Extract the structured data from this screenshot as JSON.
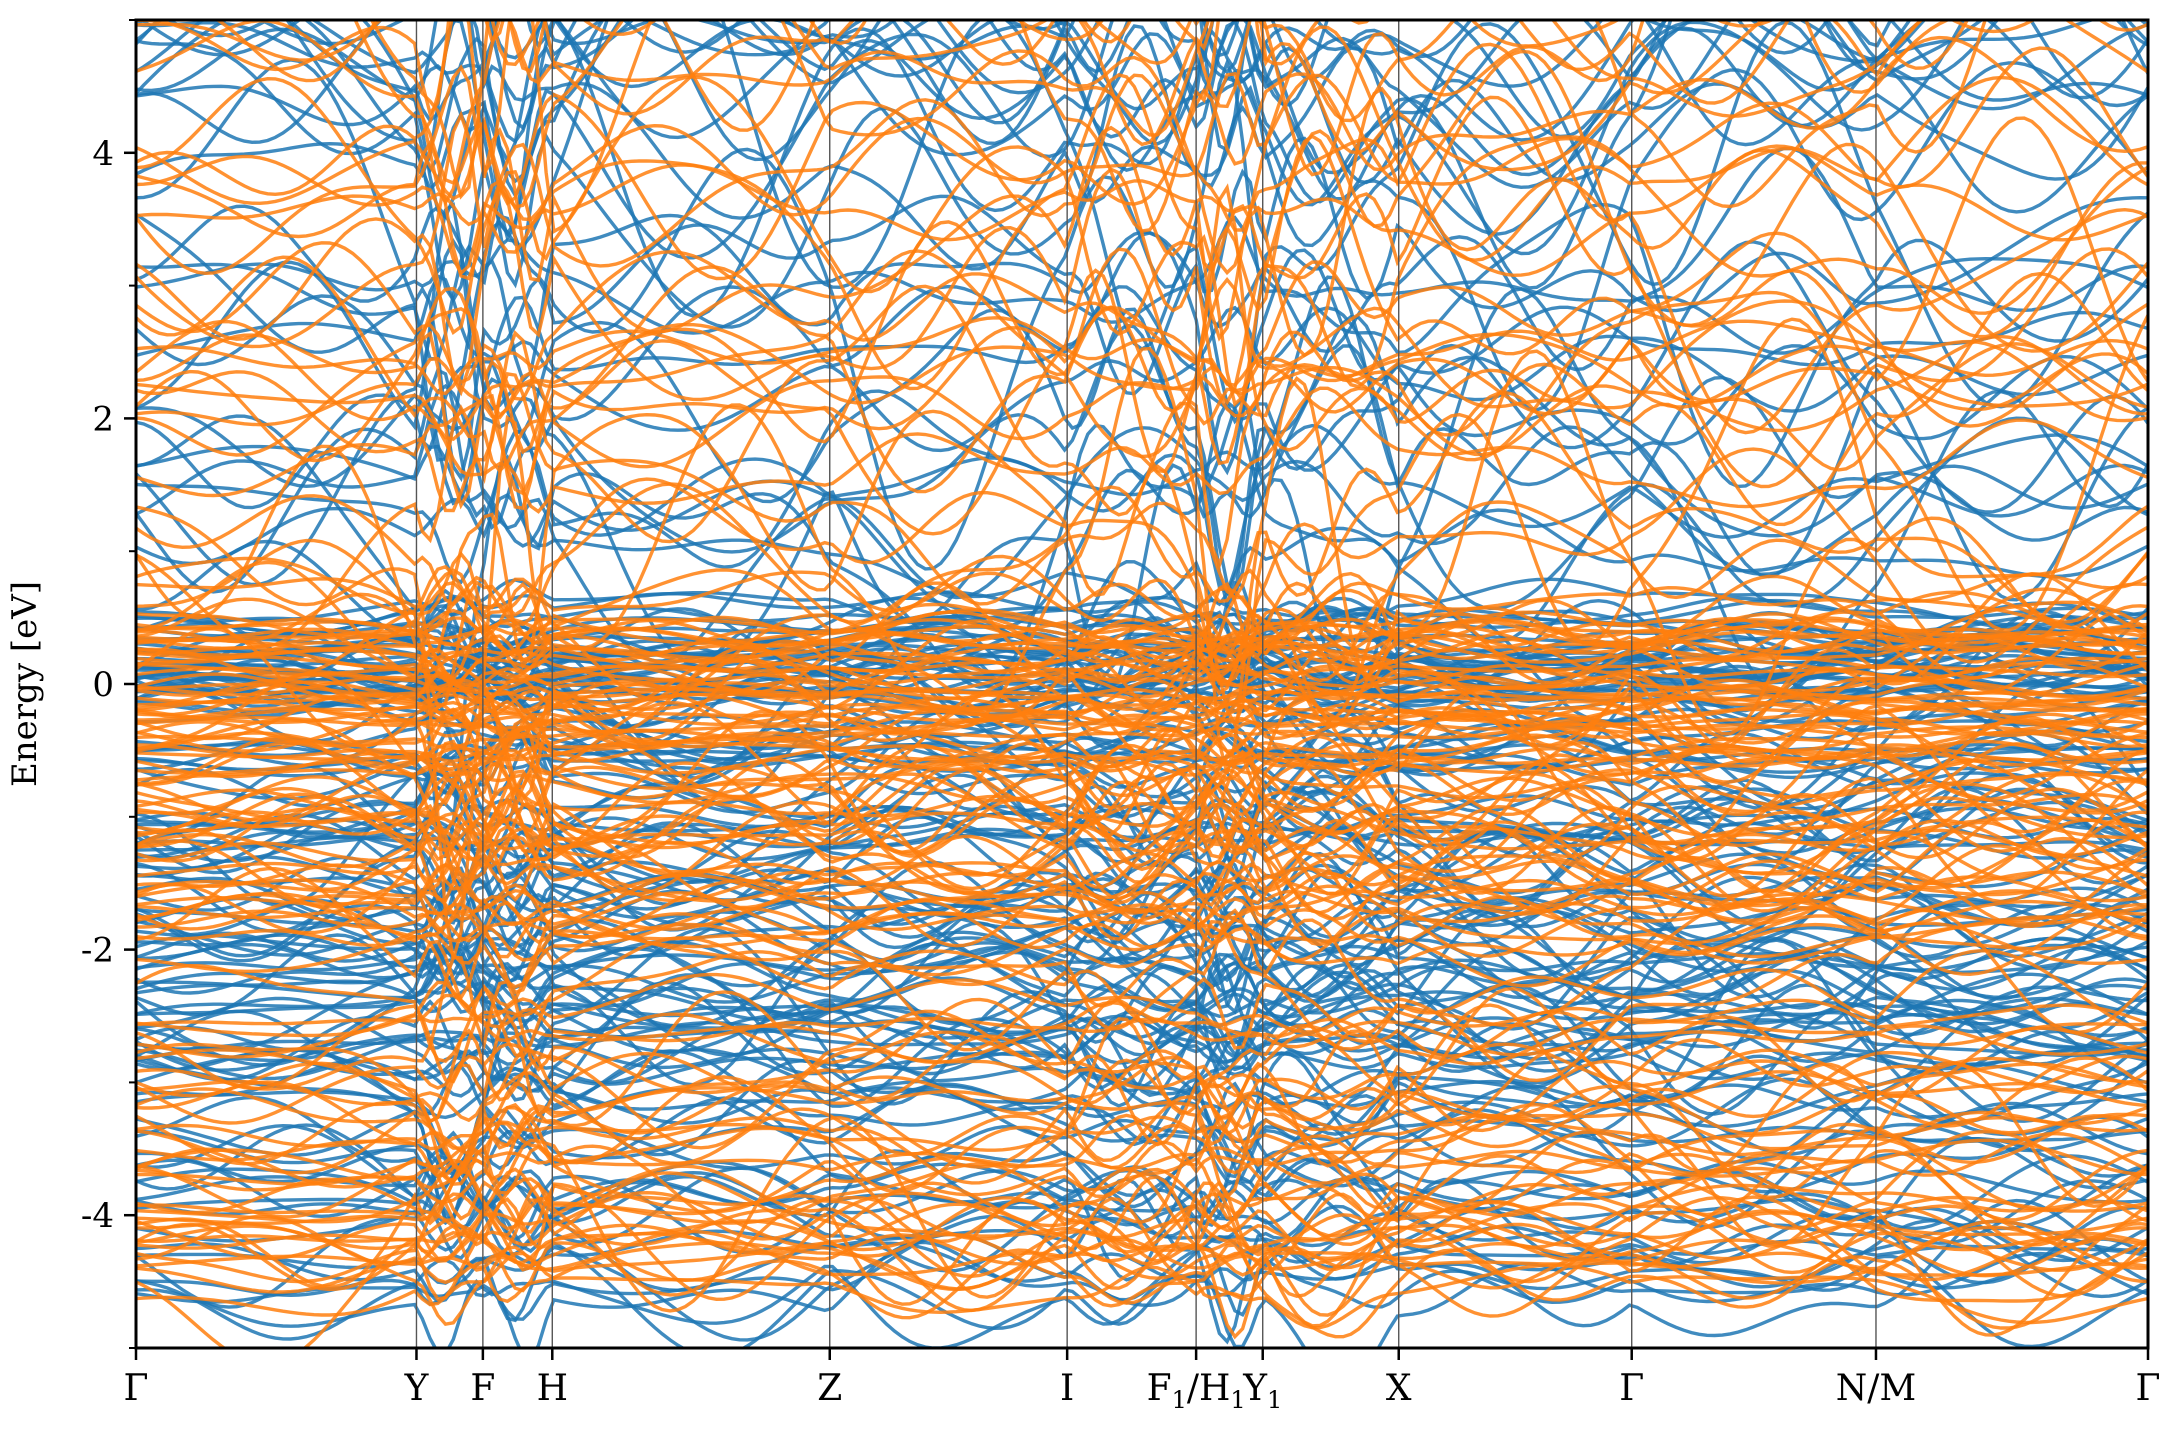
{
  "chart_data": {
    "type": "line",
    "title": "",
    "ylabel": "Energy [eV]",
    "xlabel": "",
    "ylim": [
      -5,
      5
    ],
    "xlim": [
      0,
      1
    ],
    "grid": false,
    "legend": "none",
    "yticks": [
      {
        "value": -4,
        "label": "-4"
      },
      {
        "value": -2,
        "label": "-2"
      },
      {
        "value": 0,
        "label": "0"
      },
      {
        "value": 2,
        "label": "2"
      },
      {
        "value": 4,
        "label": "4"
      }
    ],
    "yminor_ticks": [
      -5,
      -3,
      -1,
      1,
      3,
      5
    ],
    "high_symmetry_points": [
      {
        "label": "Γ",
        "sub": "",
        "k": 0.0
      },
      {
        "label": "Y",
        "sub": "",
        "k": 0.1394
      },
      {
        "label": "F",
        "sub": "",
        "k": 0.1724
      },
      {
        "label": "H",
        "sub": "",
        "k": 0.2069
      },
      {
        "label": "Z",
        "sub": "",
        "k": 0.3448
      },
      {
        "label": "I",
        "sub": "",
        "k": 0.4628
      },
      {
        "label": "F₁/H₁",
        "sub": "",
        "k": 0.5269,
        "display": [
          {
            "t": "F"
          },
          {
            "t": "1",
            "s": true
          },
          {
            "t": "/H"
          },
          {
            "t": "1",
            "s": true
          }
        ]
      },
      {
        "label": "Y₁",
        "sub": "",
        "k": 0.56,
        "display": [
          {
            "t": "Y"
          },
          {
            "t": "1",
            "s": true
          }
        ]
      },
      {
        "label": "X",
        "sub": "",
        "k": 0.6276
      },
      {
        "label": "Γ",
        "sub": "",
        "k": 0.7434
      },
      {
        "label": "N/M",
        "sub": "",
        "k": 0.8648
      },
      {
        "label": "Γ",
        "sub": "",
        "k": 1.0
      }
    ],
    "series": [
      {
        "color": "#1f77b4",
        "band_count": 150
      },
      {
        "color": "#ff7f0e",
        "band_count": 150
      }
    ],
    "band_density": {
      "dense_valence_range": [
        -4.6,
        0.6
      ],
      "sparse_conduction_range": [
        0.6,
        5.0
      ],
      "flat_band_clusters": [
        {
          "center": 0.1,
          "spread": 0.5
        },
        {
          "center": -1.4,
          "spread": 0.8
        },
        {
          "center": 2.35,
          "spread": 0.15
        }
      ]
    },
    "colors": {
      "series_1": "#1f77b4",
      "series_2": "#ff7f0e",
      "axes": "#000000",
      "kpath_lines": "#555555"
    }
  }
}
